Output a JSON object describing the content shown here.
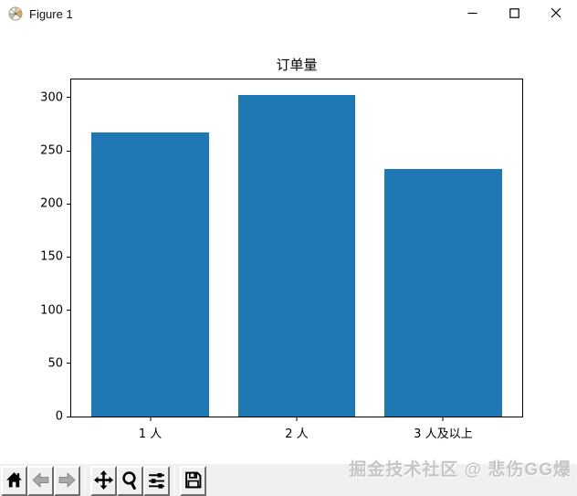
{
  "window": {
    "title": "Figure 1",
    "controls": [
      {
        "icon": "minimize-icon",
        "name": "minimize"
      },
      {
        "icon": "maximize-icon",
        "name": "maximize"
      },
      {
        "icon": "close-icon",
        "name": "close"
      }
    ]
  },
  "chart_data": {
    "type": "bar",
    "title": "订单量",
    "categories": [
      "1 人",
      "2 人",
      "3 人及以上"
    ],
    "values": [
      267,
      302,
      233
    ],
    "bar_color": "#1f77b4",
    "yticks": [
      0,
      50,
      100,
      150,
      200,
      250,
      300
    ],
    "ylim": [
      0,
      317
    ],
    "xlim": [
      -0.54,
      2.54
    ],
    "bar_width": 0.8,
    "grid": false,
    "legend": null,
    "xlabel": "",
    "ylabel": ""
  },
  "toolbar": {
    "buttons": [
      {
        "icon": "home-icon",
        "name": "home",
        "enabled": true
      },
      {
        "icon": "back-arrow-icon",
        "name": "back",
        "enabled": false
      },
      {
        "icon": "forward-arrow-icon",
        "name": "forward",
        "enabled": false
      },
      {
        "icon": "pan-icon",
        "name": "pan",
        "enabled": true
      },
      {
        "icon": "zoom-to-rect-icon",
        "name": "zoom-to-rect",
        "enabled": true
      },
      {
        "icon": "configure-subplots-icon",
        "name": "configure-subplots",
        "enabled": true
      },
      {
        "icon": "save-icon",
        "name": "save-figure",
        "enabled": true
      }
    ]
  },
  "watermark": {
    "text": "掘金技术社区 @ 悲伤GG爆"
  }
}
